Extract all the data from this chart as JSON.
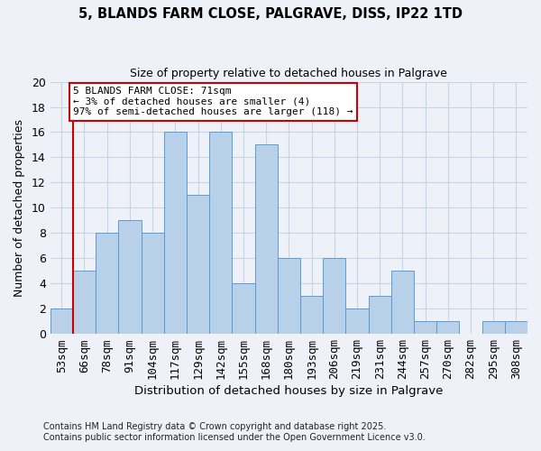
{
  "title1": "5, BLANDS FARM CLOSE, PALGRAVE, DISS, IP22 1TD",
  "title2": "Size of property relative to detached houses in Palgrave",
  "xlabel": "Distribution of detached houses by size in Palgrave",
  "ylabel": "Number of detached properties",
  "bin_labels": [
    "53sqm",
    "66sqm",
    "78sqm",
    "91sqm",
    "104sqm",
    "117sqm",
    "129sqm",
    "142sqm",
    "155sqm",
    "168sqm",
    "180sqm",
    "193sqm",
    "206sqm",
    "219sqm",
    "231sqm",
    "244sqm",
    "257sqm",
    "270sqm",
    "282sqm",
    "295sqm",
    "308sqm"
  ],
  "bar_heights": [
    2,
    5,
    8,
    9,
    8,
    16,
    11,
    16,
    4,
    15,
    6,
    3,
    6,
    2,
    3,
    5,
    1,
    1,
    0,
    1,
    1
  ],
  "bar_color": "#b8d0e8",
  "bar_edge_color": "#5b9bd5",
  "ylim": [
    0,
    20
  ],
  "yticks": [
    0,
    2,
    4,
    6,
    8,
    10,
    12,
    14,
    16,
    18,
    20
  ],
  "vline_x": 0.5,
  "vline_color": "#cc0000",
  "annotation_text": "5 BLANDS FARM CLOSE: 71sqm\n← 3% of detached houses are smaller (4)\n97% of semi-detached houses are larger (118) →",
  "annotation_box_color": "#ffffff",
  "annotation_box_edge": "#cc0000",
  "footer1": "Contains HM Land Registry data © Crown copyright and database right 2025.",
  "footer2": "Contains public sector information licensed under the Open Government Licence v3.0.",
  "bg_color": "#eef2f8",
  "plot_bg_color": "#eef2f8",
  "grid_color": "#c5d5e8"
}
